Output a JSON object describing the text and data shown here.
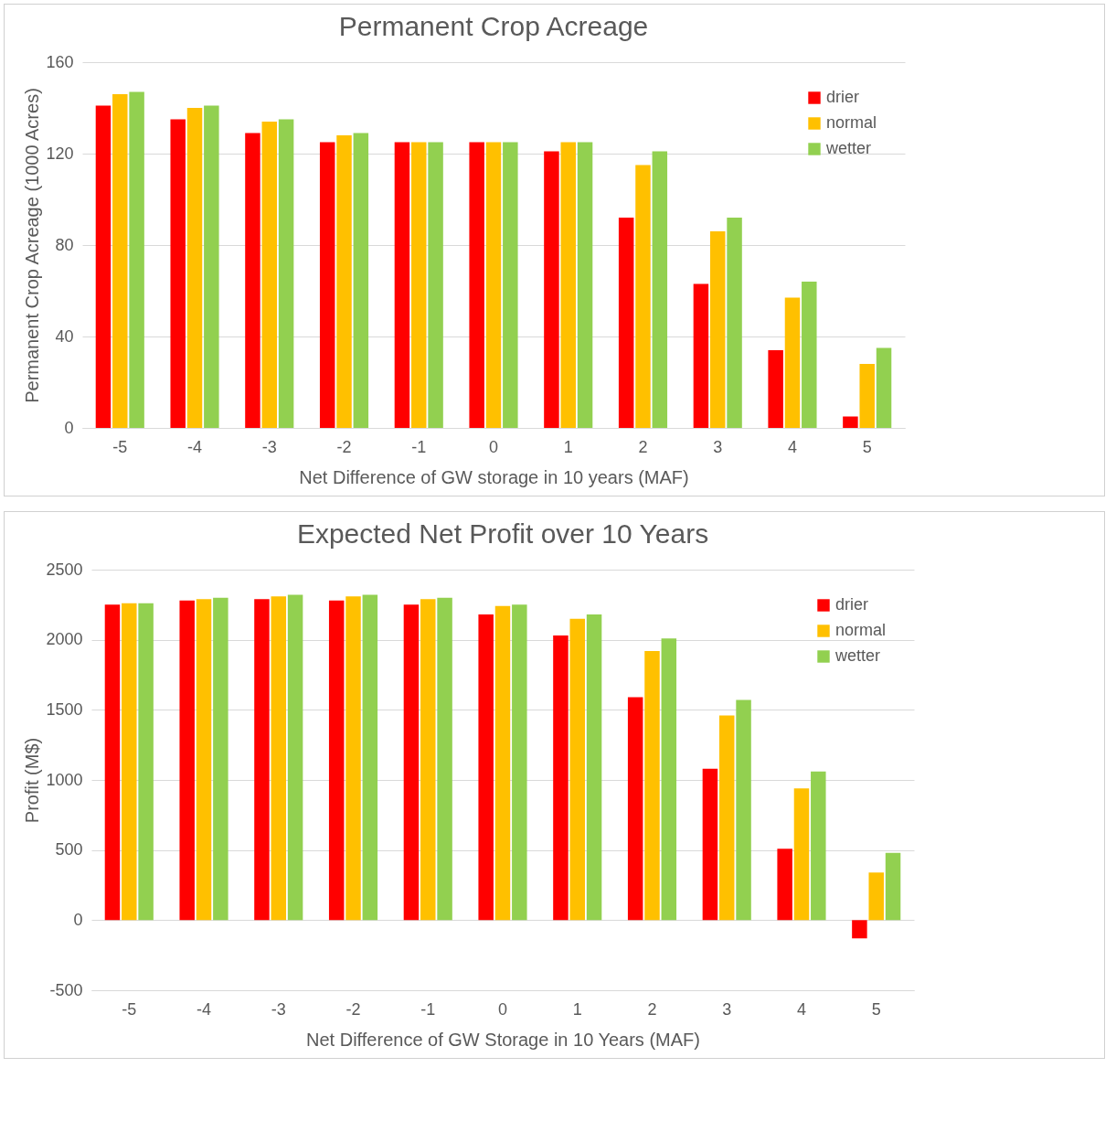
{
  "chart_data": [
    {
      "type": "bar",
      "title": "Permanent Crop Acreage",
      "xlabel": "Net Difference of GW storage in 10 years (MAF)",
      "ylabel": "Permanent Crop Acreage (1000 Acres)",
      "categories": [
        "-5",
        "-4",
        "-3",
        "-2",
        "-1",
        "0",
        "1",
        "2",
        "3",
        "4",
        "5"
      ],
      "series": [
        {
          "name": "drier",
          "color": "#ff0000",
          "values": [
            141,
            135,
            129,
            125,
            125,
            125,
            121,
            92,
            63,
            34,
            5
          ]
        },
        {
          "name": "normal",
          "color": "#ffc000",
          "values": [
            146,
            140,
            134,
            128,
            125,
            125,
            125,
            115,
            86,
            57,
            28
          ]
        },
        {
          "name": "wetter",
          "color": "#92d050",
          "values": [
            147,
            141,
            135,
            129,
            125,
            125,
            125,
            121,
            92,
            64,
            35
          ]
        }
      ],
      "ylim": [
        0,
        160
      ],
      "yticks": [
        0,
        40,
        80,
        120,
        160
      ],
      "grid": "y",
      "legend": "top right"
    },
    {
      "type": "bar",
      "title": "Expected Net Profit over 10 Years",
      "xlabel": "Net Difference of GW Storage in 10 Years (MAF)",
      "ylabel": "Profit (M$)",
      "categories": [
        "-5",
        "-4",
        "-3",
        "-2",
        "-1",
        "0",
        "1",
        "2",
        "3",
        "4",
        "5"
      ],
      "series": [
        {
          "name": "drier",
          "color": "#ff0000",
          "values": [
            2250,
            2280,
            2290,
            2280,
            2250,
            2180,
            2030,
            1590,
            1080,
            510,
            -130
          ]
        },
        {
          "name": "normal",
          "color": "#ffc000",
          "values": [
            2260,
            2290,
            2310,
            2310,
            2290,
            2240,
            2150,
            1920,
            1460,
            940,
            340
          ]
        },
        {
          "name": "wetter",
          "color": "#92d050",
          "values": [
            2260,
            2300,
            2320,
            2320,
            2300,
            2250,
            2180,
            2010,
            1570,
            1060,
            480
          ]
        }
      ],
      "ylim": [
        -500,
        2500
      ],
      "yticks": [
        -500,
        0,
        500,
        1000,
        1500,
        2000,
        2500
      ],
      "grid": "y",
      "legend": "top right"
    }
  ]
}
